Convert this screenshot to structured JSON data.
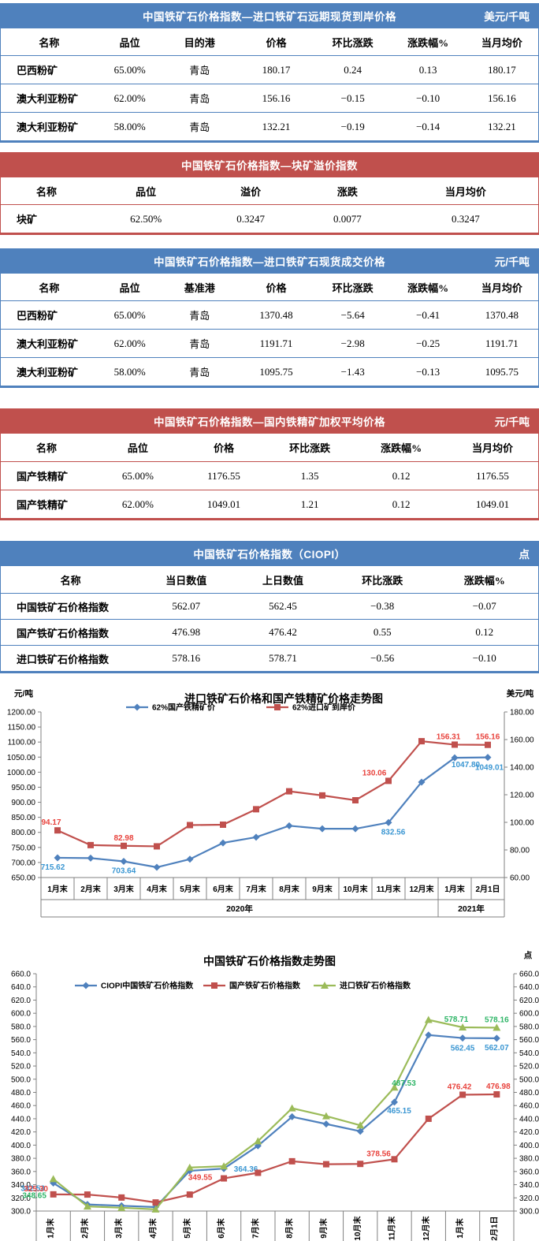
{
  "colors": {
    "blue_theme": "#4f81bd",
    "red_theme": "#c0504d",
    "axis_line": "#808080",
    "series_blue": "#4f81bd",
    "series_red": "#c0504d",
    "series_green": "#9bbb59",
    "label_blue": "#3a96d2",
    "label_red": "#e8423c",
    "label_green": "#2eb567"
  },
  "tables": [
    {
      "theme": "blue",
      "title": "中国铁矿石价格指数—进口铁矿石远期现货到岸价格",
      "unit": "美元/千吨",
      "columns": [
        "名称",
        "品位",
        "目的港",
        "价格",
        "环比涨跌",
        "涨跌幅%",
        "当月均价"
      ],
      "rows": [
        [
          "巴西粉矿",
          "65.00%",
          "青岛",
          "180.17",
          "0.24",
          "0.13",
          "180.17"
        ],
        [
          "澳大利亚粉矿",
          "62.00%",
          "青岛",
          "156.16",
          "−0.15",
          "−0.10",
          "156.16"
        ],
        [
          "澳大利亚粉矿",
          "58.00%",
          "青岛",
          "132.21",
          "−0.19",
          "−0.14",
          "132.21"
        ]
      ]
    },
    {
      "theme": "red",
      "title": "中国铁矿石价格指数—块矿溢价指数",
      "unit": "",
      "columns": [
        "名称",
        "品位",
        "溢价",
        "涨跌",
        "当月均价"
      ],
      "rows": [
        [
          "块矿",
          "62.50%",
          "0.3247",
          "0.0077",
          "0.3247"
        ]
      ]
    },
    {
      "theme": "blue",
      "title": "中国铁矿石价格指数—进口铁矿石现货成交价格",
      "unit": "元/千吨",
      "columns": [
        "名称",
        "品位",
        "基准港",
        "价格",
        "环比涨跌",
        "涨跌幅%",
        "当月均价"
      ],
      "rows": [
        [
          "巴西粉矿",
          "65.00%",
          "青岛",
          "1370.48",
          "−5.64",
          "−0.41",
          "1370.48"
        ],
        [
          "澳大利亚粉矿",
          "62.00%",
          "青岛",
          "1191.71",
          "−2.98",
          "−0.25",
          "1191.71"
        ],
        [
          "澳大利亚粉矿",
          "58.00%",
          "青岛",
          "1095.75",
          "−1.43",
          "−0.13",
          "1095.75"
        ]
      ]
    },
    {
      "theme": "red",
      "title": "中国铁矿石价格指数—国内铁精矿加权平均价格",
      "unit": "元/千吨",
      "columns": [
        "名称",
        "品位",
        "价格",
        "环比涨跌",
        "涨跌幅%",
        "当月均价"
      ],
      "rows": [
        [
          "国产铁精矿",
          "65.00%",
          "1176.55",
          "1.35",
          "0.12",
          "1176.55"
        ],
        [
          "国产铁精矿",
          "62.00%",
          "1049.01",
          "1.21",
          "0.12",
          "1049.01"
        ]
      ]
    },
    {
      "theme": "blue",
      "title": "中国铁矿石价格指数（CIOPI）",
      "unit": "点",
      "columns": [
        "名称",
        "当日数值",
        "上日数值",
        "环比涨跌",
        "涨跌幅%"
      ],
      "rows": [
        [
          "中国铁矿石价格指数",
          "562.07",
          "562.45",
          "−0.38",
          "−0.07"
        ],
        [
          "国产铁矿石价格指数",
          "476.98",
          "476.42",
          "0.55",
          "0.12"
        ],
        [
          "进口铁矿石价格指数",
          "578.16",
          "578.71",
          "−0.56",
          "−0.10"
        ]
      ]
    }
  ],
  "chart_data": [
    {
      "id": "chart-price-trend",
      "type": "line",
      "title": "进口铁矿石价格和国产铁精矿价格走势图",
      "grid": false,
      "legend_position": "top",
      "categories": [
        "1月末",
        "2月末",
        "3月末",
        "4月末",
        "5月末",
        "6月末",
        "7月末",
        "8月末",
        "9月末",
        "10月末",
        "11月末",
        "12月末",
        "1月末",
        "2月1日"
      ],
      "year_groups": [
        {
          "label": "2020年",
          "span": 12
        },
        {
          "label": "2021年",
          "span": 2
        }
      ],
      "left_axis": {
        "unit": "元/吨",
        "min": 650,
        "max": 1200,
        "step": 50,
        "ticks": [
          "1200.00",
          "1150.00",
          "1100.00",
          "1050.00",
          "1000.00",
          "950.00",
          "900.00",
          "850.00",
          "800.00",
          "750.00",
          "700.00",
          "650.00"
        ]
      },
      "right_axis": {
        "unit": "美元/吨",
        "min": 60,
        "max": 180,
        "step": 20,
        "ticks": [
          "180.00",
          "160.00",
          "140.00",
          "120.00",
          "100.00",
          "80.00",
          "60.00"
        ]
      },
      "series": [
        {
          "name": "62%国产铁精矿价",
          "axis": "left",
          "color_key": "series_blue",
          "label_color_key": "label_blue",
          "marker": "diamond",
          "values": [
            715.62,
            714.5,
            703.64,
            684.0,
            711.0,
            765.0,
            784.0,
            822.0,
            812.0,
            812.0,
            832.56,
            967.0,
            1047.8,
            1049.01
          ],
          "point_labels": [
            {
              "i": 0,
              "t": "715.62",
              "dx": -6,
              "dy": 15
            },
            {
              "i": 2,
              "t": "703.64",
              "dx": 0,
              "dy": 15
            },
            {
              "i": 10,
              "t": "832.56",
              "dx": 6,
              "dy": 15
            },
            {
              "i": 12,
              "t": "1047.80",
              "dx": 14,
              "dy": 12
            },
            {
              "i": 13,
              "t": "1049.01",
              "dx": 2,
              "dy": 16
            }
          ]
        },
        {
          "name": "62%进口矿到岸价",
          "axis": "right",
          "color_key": "series_red",
          "label_color_key": "label_red",
          "marker": "square",
          "values": [
            94.17,
            83.5,
            82.98,
            82.6,
            98.0,
            98.3,
            109.5,
            122.5,
            119.5,
            116.0,
            130.06,
            158.8,
            156.31,
            156.16
          ],
          "point_labels": [
            {
              "i": 0,
              "t": "94.17",
              "dx": -8,
              "dy": -7
            },
            {
              "i": 2,
              "t": "82.98",
              "dx": 0,
              "dy": -7
            },
            {
              "i": 10,
              "t": "130.06",
              "dx": -18,
              "dy": -7
            },
            {
              "i": 12,
              "t": "156.31",
              "dx": -8,
              "dy": -7
            },
            {
              "i": 13,
              "t": "156.16",
              "dx": 0,
              "dy": -7
            }
          ]
        }
      ]
    },
    {
      "id": "chart-index-trend",
      "type": "line",
      "title": "中国铁矿石价格指数走势图",
      "grid": false,
      "legend_position": "top",
      "categories": [
        "1月末",
        "2月末",
        "3月末",
        "4月末",
        "5月末",
        "6月末",
        "7月末",
        "8月末",
        "9月末",
        "10月末",
        "11月末",
        "12月末",
        "1月末",
        "2月1日"
      ],
      "year_groups": [
        {
          "label": "2020年",
          "span": 12
        },
        {
          "label": "2021年",
          "span": 2
        }
      ],
      "left_axis": {
        "unit": "",
        "min": 300,
        "max": 660,
        "step": 20,
        "ticks": [
          "660.0",
          "640.0",
          "620.0",
          "600.0",
          "580.0",
          "560.0",
          "540.0",
          "520.0",
          "500.0",
          "480.0",
          "460.0",
          "440.0",
          "420.0",
          "400.0",
          "380.0",
          "360.0",
          "340.0",
          "320.0",
          "300.0"
        ]
      },
      "right_axis": {
        "unit": "点",
        "min": 300,
        "max": 660,
        "step": 20,
        "ticks": [
          "660.0",
          "640.0",
          "620.0",
          "600.0",
          "580.0",
          "560.0",
          "540.0",
          "520.0",
          "500.0",
          "480.0",
          "460.0",
          "440.0",
          "420.0",
          "400.0",
          "380.0",
          "360.0",
          "340.0",
          "320.0",
          "300.0"
        ]
      },
      "series": [
        {
          "name": "CIOPI中国铁矿石价格指数",
          "axis": "left",
          "color_key": "series_blue",
          "label_color_key": "label_blue",
          "marker": "diamond",
          "values": [
            342.53,
            310,
            308,
            306,
            361,
            364.36,
            399,
            443,
            432,
            421,
            465.15,
            567,
            562.45,
            562.07
          ],
          "point_labels": [
            {
              "i": 0,
              "t": "342.53",
              "dx": -26,
              "dy": 10
            },
            {
              "i": 5,
              "t": "364.36",
              "dx": 28,
              "dy": 4
            },
            {
              "i": 10,
              "t": "465.15",
              "dx": 6,
              "dy": 14
            },
            {
              "i": 12,
              "t": "562.45",
              "dx": 0,
              "dy": 16
            },
            {
              "i": 13,
              "t": "562.07",
              "dx": 0,
              "dy": 15
            }
          ]
        },
        {
          "name": "国产铁矿石价格指数",
          "axis": "left",
          "color_key": "series_red",
          "label_color_key": "label_red",
          "marker": "square",
          "values": [
            325.3,
            325,
            320.5,
            313,
            325,
            349.55,
            358,
            375.5,
            371,
            371.5,
            378.56,
            440,
            476.42,
            476.98
          ],
          "point_labels": [
            {
              "i": 0,
              "t": "325.30",
              "dx": -22,
              "dy": -4
            },
            {
              "i": 5,
              "t": "349.55",
              "dx": -30,
              "dy": 2
            },
            {
              "i": 10,
              "t": "378.56",
              "dx": -20,
              "dy": -4
            },
            {
              "i": 12,
              "t": "476.42",
              "dx": -4,
              "dy": -7
            },
            {
              "i": 13,
              "t": "476.98",
              "dx": 2,
              "dy": -7
            }
          ]
        },
        {
          "name": "进口铁矿石价格指数",
          "axis": "left",
          "color_key": "series_green",
          "label_color_key": "label_green",
          "marker": "triangle",
          "values": [
            348.65,
            307,
            305,
            302.5,
            366,
            368,
            406,
            456,
            444,
            430,
            487.53,
            590,
            578.71,
            578.16
          ],
          "point_labels": [
            {
              "i": 0,
              "t": "348.65",
              "dx": -24,
              "dy": 24
            },
            {
              "i": 10,
              "t": "487.53",
              "dx": 12,
              "dy": -2
            },
            {
              "i": 12,
              "t": "578.71",
              "dx": -8,
              "dy": -7
            },
            {
              "i": 13,
              "t": "578.16",
              "dx": 0,
              "dy": -7
            }
          ]
        }
      ]
    }
  ]
}
